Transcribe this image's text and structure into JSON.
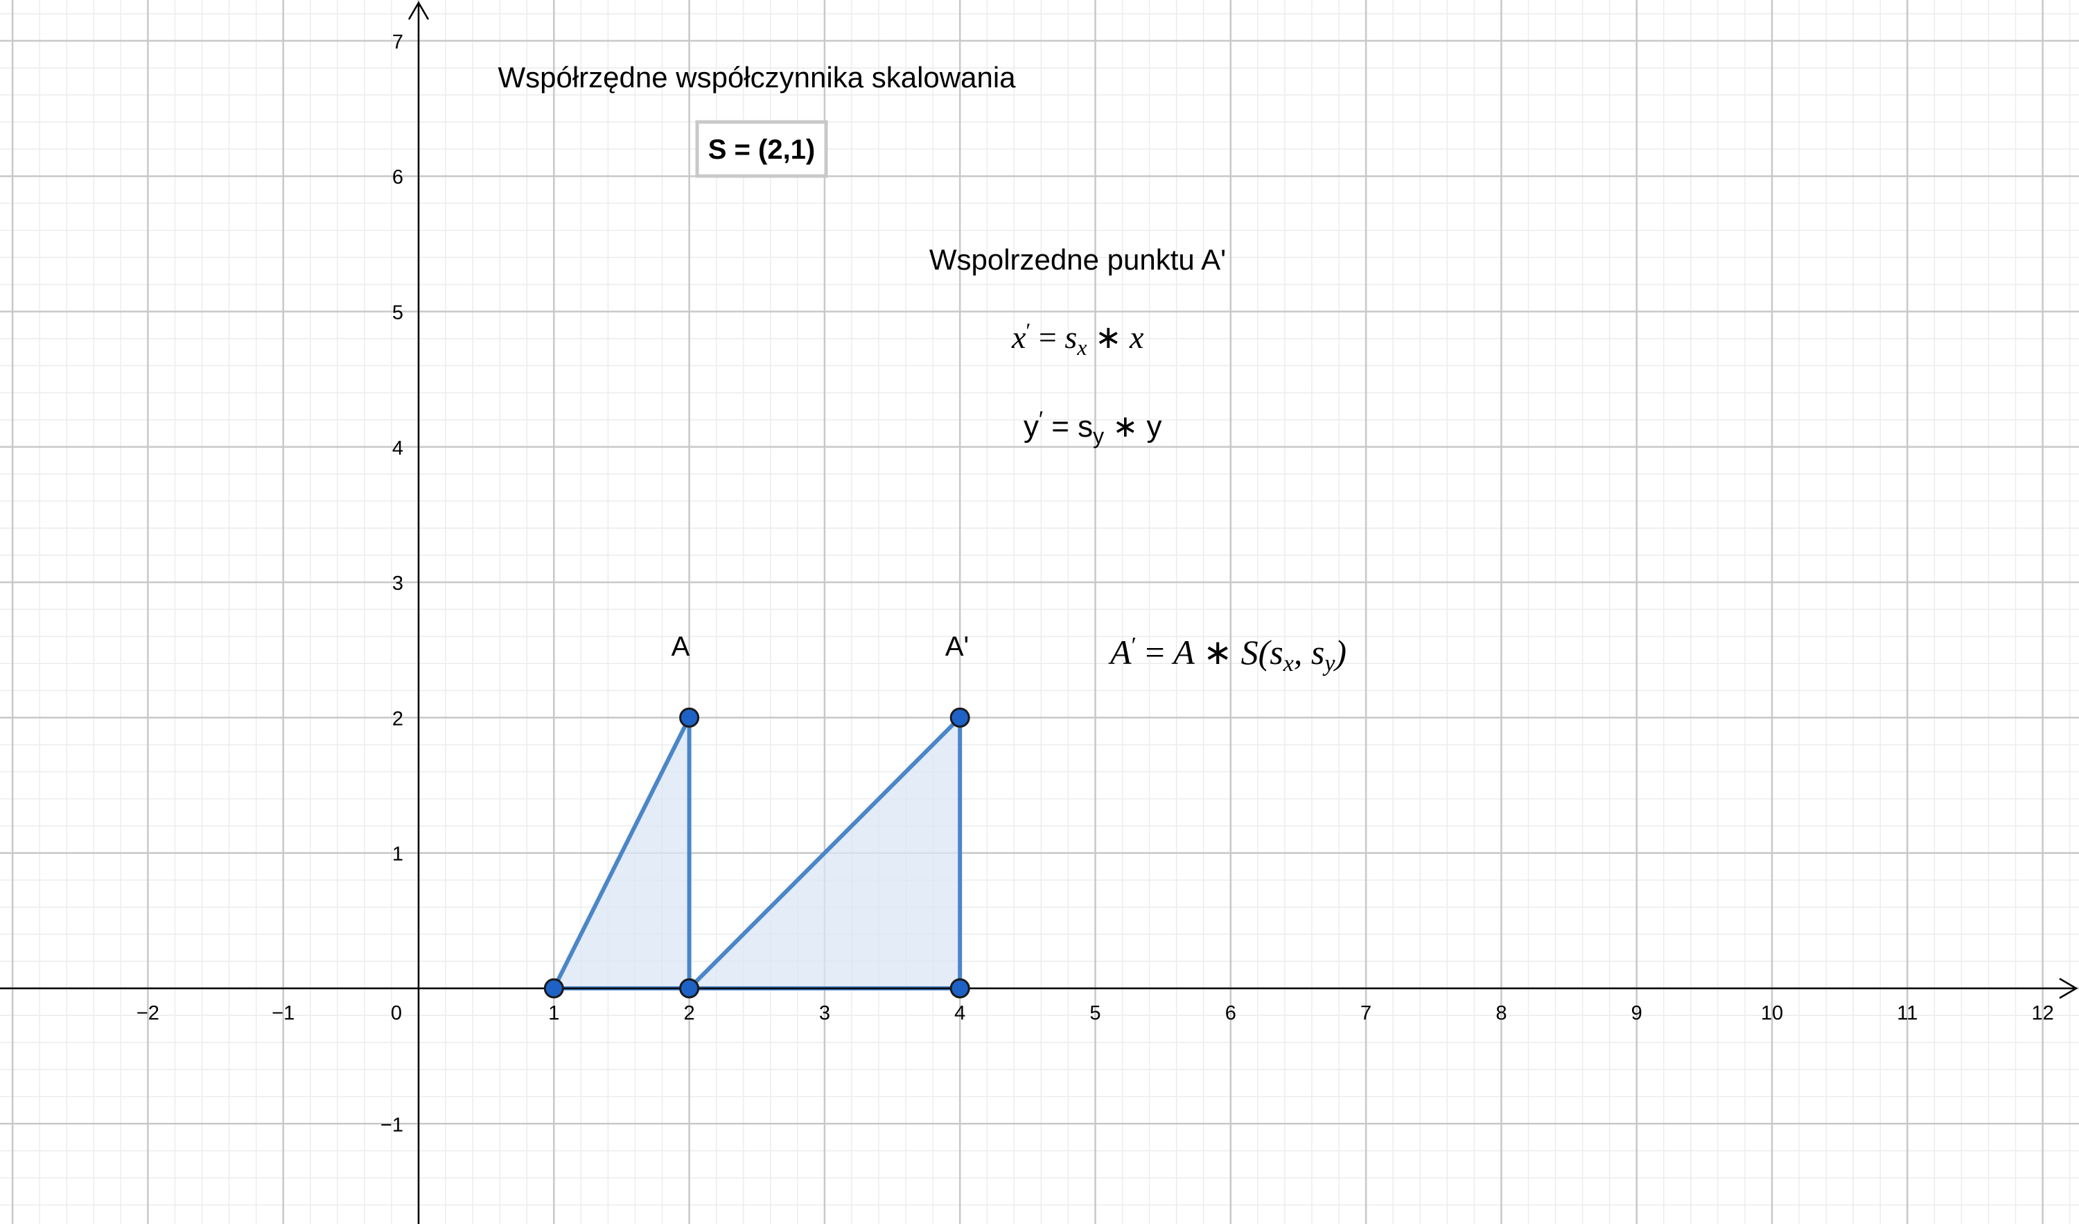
{
  "scaling_title": "Współrzędne współczynnika skalowania",
  "scaling_box": "S = (2,1)",
  "point_title": "Wspolrzedne punktu A'",
  "formula_x": {
    "lhs": "x",
    "prime": "′",
    "eq": " = ",
    "s": "s",
    "sub": "x",
    "op": " ∗ ",
    "var": "x"
  },
  "formula_y": {
    "lhs": "y",
    "prime": "′",
    "eq": " = ",
    "s": "s",
    "sub": "y",
    "op": " ∗ ",
    "var": "y"
  },
  "formula_a": {
    "lhs": "A",
    "prime": "′",
    "eq": " = ",
    "a": "A",
    "op": " ∗ ",
    "s": "S(s",
    "sub1": "x",
    "comma": ", s",
    "sub2": "y",
    "close": ")"
  },
  "label_A": "A",
  "label_A_prime": "A'",
  "colors": {
    "polygon_stroke": "#4a86c8",
    "polygon_fill": "#dbe6f6",
    "point_fill": "#1e62c6",
    "point_stroke": "#1a1a1a",
    "grid_major": "#c8c8c8",
    "grid_minor": "#ececec",
    "axis": "#000000"
  },
  "chart_data": {
    "type": "scatter",
    "xlim": [
      -3,
      12
    ],
    "ylim": [
      -1,
      7
    ],
    "x_ticks": [
      -2,
      -1,
      0,
      1,
      2,
      3,
      4,
      5,
      6,
      7,
      8,
      9,
      10,
      11,
      12
    ],
    "y_ticks": [
      -1,
      1,
      2,
      3,
      4,
      5,
      6,
      7
    ],
    "grid": true,
    "polygons": [
      {
        "points": [
          [
            1,
            0
          ],
          [
            2,
            2
          ],
          [
            2,
            0
          ]
        ]
      },
      {
        "points": [
          [
            2,
            0
          ],
          [
            4,
            2
          ],
          [
            4,
            0
          ]
        ]
      }
    ],
    "points": [
      [
        1,
        0
      ],
      [
        2,
        2
      ],
      [
        2,
        0
      ],
      [
        4,
        2
      ],
      [
        4,
        0
      ]
    ]
  }
}
